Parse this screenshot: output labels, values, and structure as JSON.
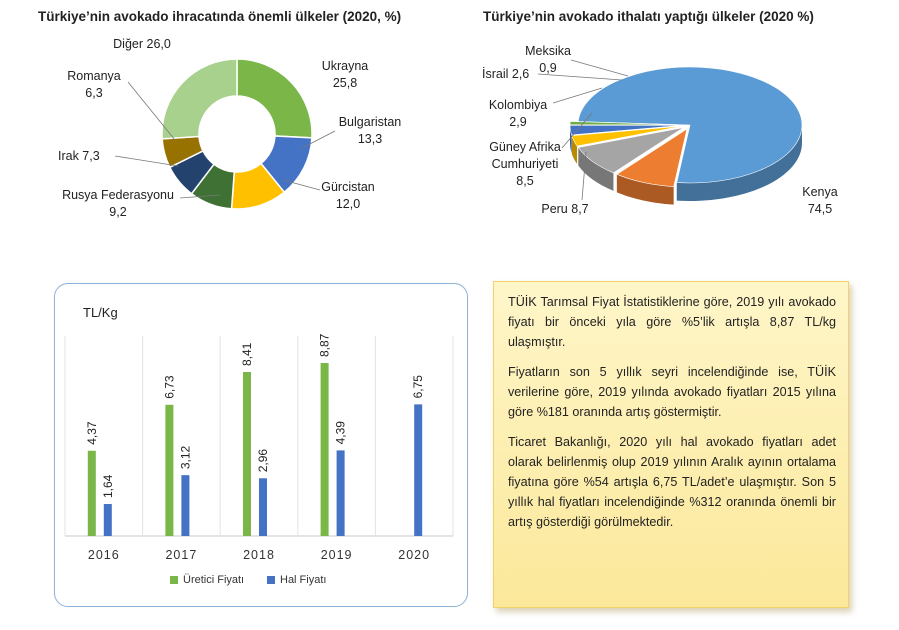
{
  "chart_data": [
    {
      "type": "pie",
      "variant": "donut",
      "title": "Türkiye’nin avokado ihracatında önemli ülkeler (2020, %)",
      "slices": [
        {
          "name": "Ukrayna",
          "value": 25.8,
          "label": "25,8",
          "color": "#7ab648"
        },
        {
          "name": "Bulgaristan",
          "value": 13.3,
          "label": "13,3",
          "color": "#4472c4"
        },
        {
          "name": "Gürcistan",
          "value": 12.0,
          "label": "12,0",
          "color": "#ffc000"
        },
        {
          "name": "Rusya Federasyonu",
          "value": 9.2,
          "label": "9,2",
          "color": "#3f7134"
        },
        {
          "name": "Irak",
          "value": 7.3,
          "label": "7,3",
          "color": "#24426e"
        },
        {
          "name": "Romanya",
          "value": 6.3,
          "label": "6,3",
          "color": "#987200"
        },
        {
          "name": "Diğer",
          "value": 26.0,
          "label": "26,0",
          "color": "#a9d18e"
        }
      ]
    },
    {
      "type": "pie",
      "variant": "3d-exploded",
      "title": "Türkiye’nin avokado ithalatı yaptığı ülkeler (2020 %)",
      "slices": [
        {
          "name": "Kenya",
          "value": 74.5,
          "label": "74,5",
          "color": "#5b9bd5"
        },
        {
          "name": "Peru",
          "value": 8.7,
          "label": "8,7",
          "color": "#ed7d31"
        },
        {
          "name": "Güney Afrika Cumhuriyeti",
          "value": 8.5,
          "label": "8,5",
          "color": "#a5a5a5"
        },
        {
          "name": "Kolombiya",
          "value": 2.9,
          "label": "2,9",
          "color": "#ffc000"
        },
        {
          "name": "İsrail",
          "value": 2.6,
          "label": "2,6",
          "color": "#4472c4"
        },
        {
          "name": "Meksika",
          "value": 0.9,
          "label": "0,9",
          "color": "#70ad47"
        }
      ]
    },
    {
      "type": "bar",
      "ylabel": "TL/Kg",
      "categories": [
        "2016",
        "2017",
        "2018",
        "2019",
        "2020"
      ],
      "ylim": [
        0,
        10
      ],
      "series": [
        {
          "name": "Üretici Fiyatı",
          "color": "#7ab648",
          "values": [
            4.37,
            6.73,
            8.41,
            8.87,
            null
          ],
          "labels": [
            "4,37",
            "6,73",
            "8,41",
            "8,87",
            ""
          ]
        },
        {
          "name": "Hal Fiyatı",
          "color": "#4472c4",
          "values": [
            1.64,
            3.12,
            2.96,
            4.39,
            6.75
          ],
          "labels": [
            "1,64",
            "3,12",
            "2,96",
            "4,39",
            "6,75"
          ]
        }
      ],
      "grid": true,
      "legend": "bottom"
    }
  ],
  "labels": {
    "donut": {
      "ukrayna": [
        "Ukrayna",
        "25,8"
      ],
      "bulgaristan": [
        "Bulgaristan",
        "13,3"
      ],
      "gurcistan": [
        "Gürcistan",
        "12,0"
      ],
      "rusya": [
        "Rusya Federasyonu",
        "9,2"
      ],
      "irak": "Irak 7,3",
      "romanya": [
        "Romanya",
        "6,3"
      ],
      "diger": "Diğer 26,0"
    },
    "pie": {
      "meksika": [
        "Meksika",
        "0,9"
      ],
      "israil": "İsrail 2,6",
      "kolombiya": [
        "Kolombiya",
        "2,9"
      ],
      "guney": [
        "Güney Afrika",
        "Cumhuriyeti",
        "8,5"
      ],
      "peru": "Peru 8,7",
      "kenya": [
        "Kenya",
        "74,5"
      ]
    }
  },
  "textbox": {
    "p1": "TÜİK Tarımsal Fiyat İstatistiklerine göre, 2019 yılı avokado fiyatı bir önceki yıla göre %5’lik artışla 8,87 TL/kg ulaşmıştır.",
    "p2": "Fiyatların son 5 yıllık seyri incelendiğinde ise, TÜİK verilerine göre, 2019 yılında avokado fiyatları 2015 yılına göre %181 oranında artış göstermiştir.",
    "p3": "Ticaret Bakanlığı, 2020 yılı hal avokado fiyatları adet olarak belirlenmiş olup 2019 yılının Aralık ayının ortalama fiyatına göre %54 artışla 6,75 TL/adet’e ulaşmıştır. Son 5 yıllık hal fiyatları incelendiğinde %312 oranında önemli bir artış gösterdiği görülmektedir."
  }
}
